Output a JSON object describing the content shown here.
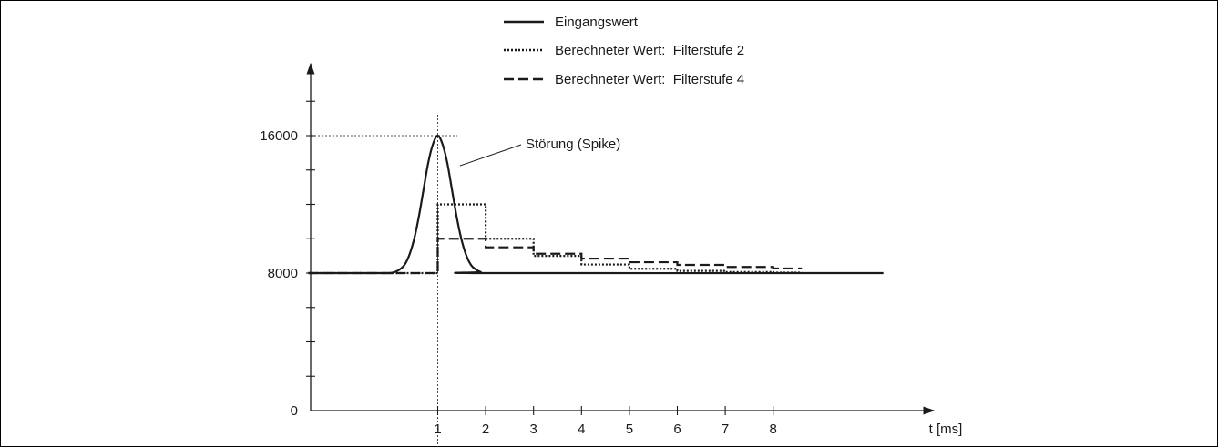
{
  "chart_data": {
    "type": "line",
    "x_axis_label": "t [ms]",
    "x_ticks": [
      1,
      2,
      3,
      4,
      5,
      6,
      7,
      8
    ],
    "y_tick_labels": [
      "0",
      "8000",
      "16000"
    ],
    "y_ticks": [
      0,
      8000,
      16000
    ],
    "xlim": [
      -1.7,
      10.3
    ],
    "ylim": [
      0,
      19000
    ],
    "annotation": "Störung (Spike)",
    "legend_position": "top-center",
    "grid": false,
    "series": [
      {
        "name": "Eingangswert",
        "style": "solid",
        "x": [
          -1.7,
          -0.1,
          0.0,
          0.1,
          0.2,
          0.3,
          0.4,
          0.5,
          0.6,
          0.7,
          0.8,
          0.9,
          1.0,
          1.1,
          1.2,
          1.3,
          1.4,
          1.5,
          1.6,
          1.7,
          1.8,
          1.9,
          2.0,
          10.3
        ],
        "y": [
          8000,
          8000,
          8000,
          8060,
          8200,
          8450,
          9000,
          9900,
          11200,
          12800,
          14400,
          15500,
          16000,
          15500,
          14400,
          12800,
          11200,
          9900,
          9000,
          8450,
          8200,
          8060,
          8000,
          8000
        ]
      },
      {
        "name": "Berechneter Wert:  Filterstufe 2",
        "style": "dotted",
        "step": true,
        "x": [
          -1.7,
          1,
          2,
          3,
          4,
          5,
          6,
          7,
          8,
          8.6
        ],
        "y": [
          8000,
          12000,
          10000,
          9000,
          8500,
          8250,
          8125,
          8062,
          8031,
          8031
        ]
      },
      {
        "name": "Berechneter Wert:  Filterstufe 4",
        "style": "dashed",
        "step": true,
        "x": [
          -1.7,
          1,
          2,
          3,
          4,
          5,
          6,
          7,
          8,
          8.6
        ],
        "y": [
          8000,
          10000,
          9500,
          9125,
          8844,
          8633,
          8475,
          8356,
          8267,
          8267
        ]
      }
    ]
  }
}
